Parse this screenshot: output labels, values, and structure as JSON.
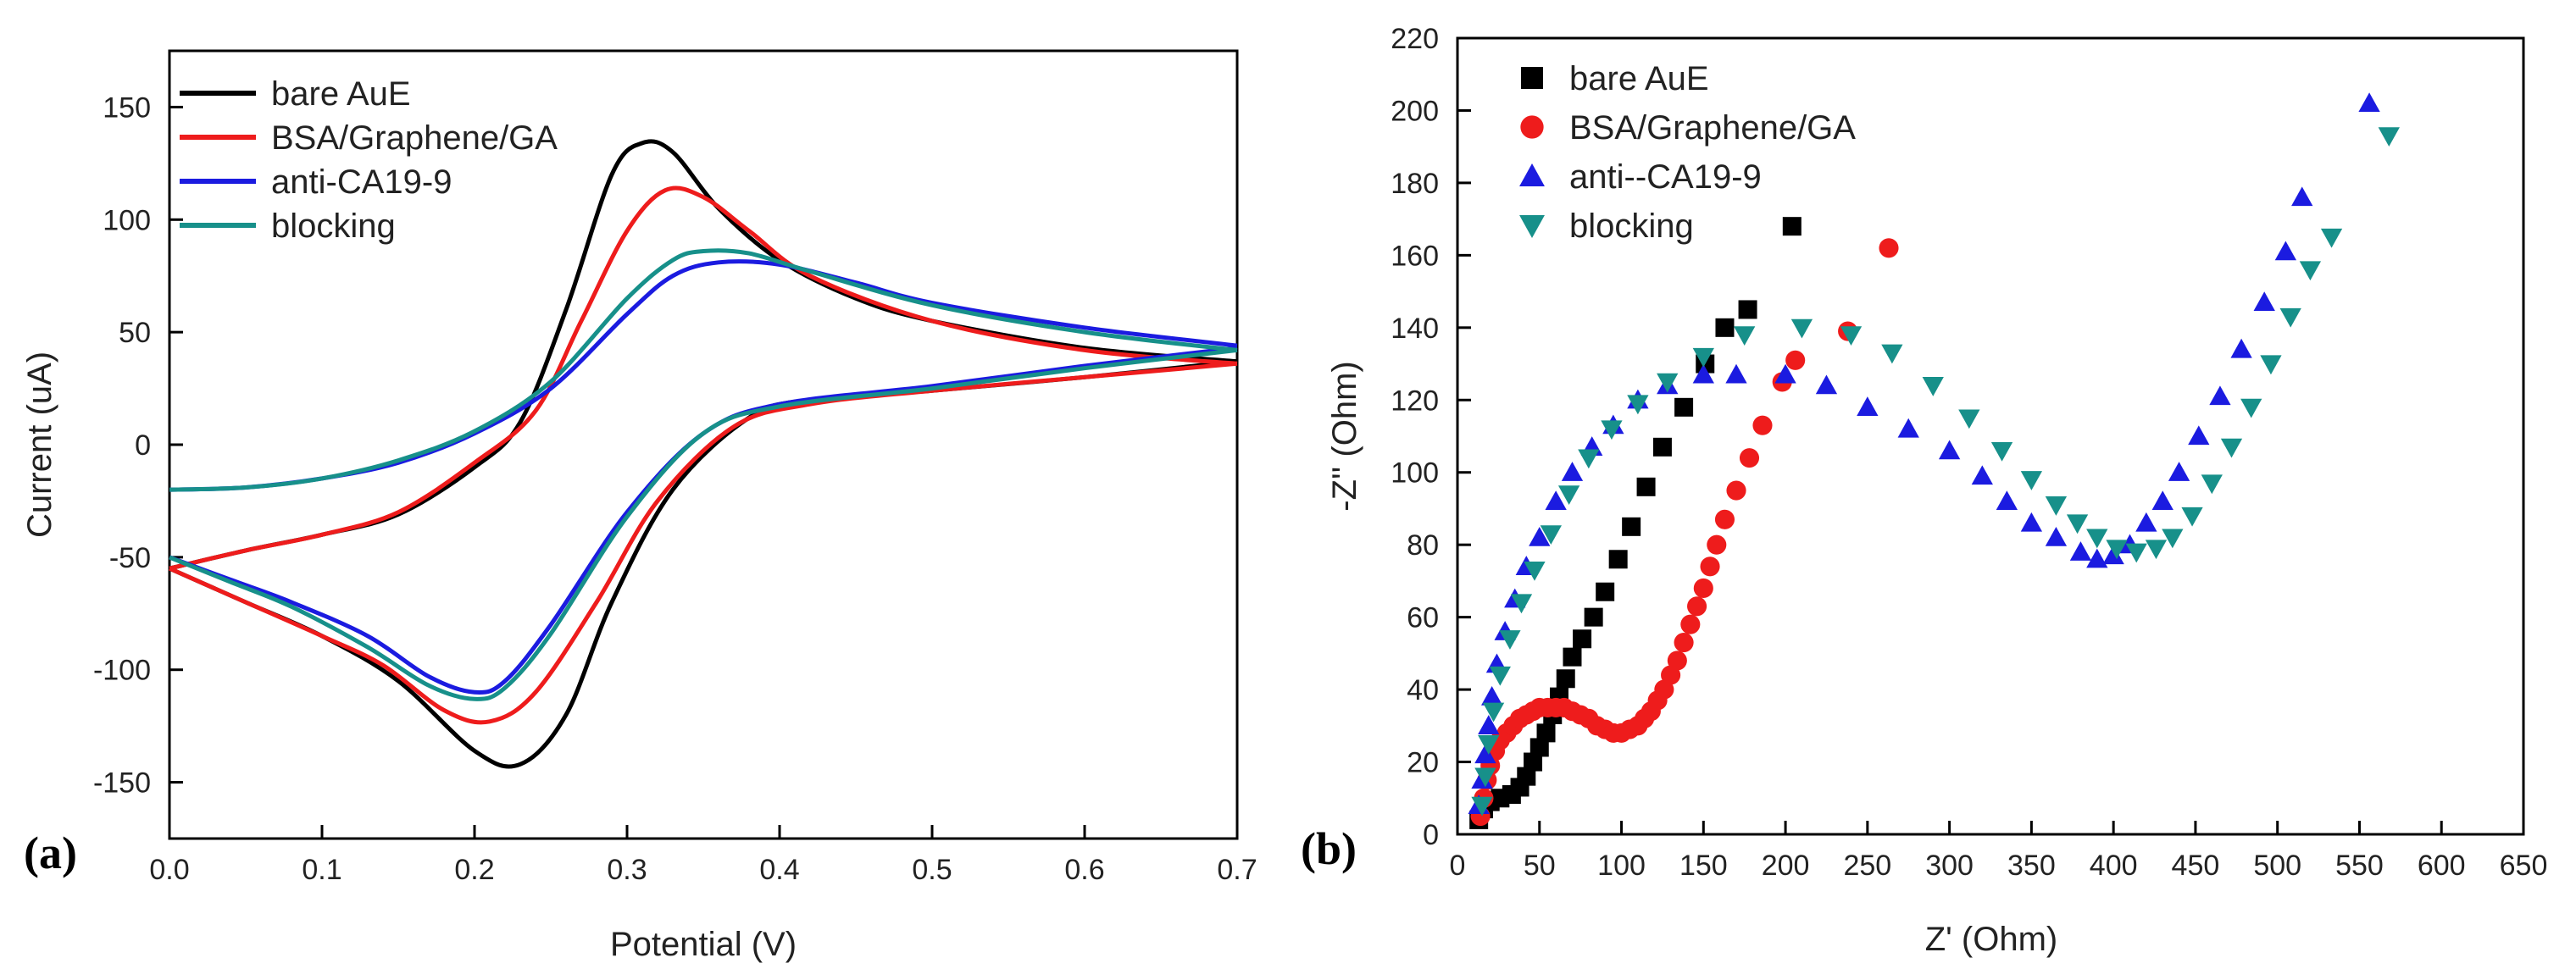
{
  "chart_data": [
    {
      "panel_label": "(a)",
      "type": "line",
      "xlabel": "Potential (V)",
      "ylabel": "Current (uA)",
      "xlim": [
        0.0,
        0.7
      ],
      "ylim": [
        -175,
        175
      ],
      "x_ticks": [
        "0.0",
        "0.1",
        "0.2",
        "0.3",
        "0.4",
        "0.5",
        "0.6",
        "0.7"
      ],
      "y_ticks": [
        "-150",
        "-100",
        "-50",
        "0",
        "50",
        "100",
        "150"
      ],
      "legend_position": "top-left",
      "series": [
        {
          "name": "bare AuE",
          "color": "#000000",
          "anodic": [
            [
              0.0,
              -55
            ],
            [
              0.05,
              -47
            ],
            [
              0.1,
              -40
            ],
            [
              0.15,
              -31
            ],
            [
              0.2,
              -10
            ],
            [
              0.23,
              10
            ],
            [
              0.26,
              60
            ],
            [
              0.29,
              120
            ],
            [
              0.31,
              134
            ],
            [
              0.33,
              130
            ],
            [
              0.36,
              105
            ],
            [
              0.4,
              82
            ],
            [
              0.45,
              65
            ],
            [
              0.5,
              55
            ],
            [
              0.6,
              43
            ],
            [
              0.7,
              37
            ]
          ],
          "cathodic": [
            [
              0.7,
              37
            ],
            [
              0.6,
              30
            ],
            [
              0.5,
              24
            ],
            [
              0.42,
              20
            ],
            [
              0.38,
              12
            ],
            [
              0.33,
              -20
            ],
            [
              0.29,
              -70
            ],
            [
              0.26,
              -120
            ],
            [
              0.23,
              -142
            ],
            [
              0.2,
              -136
            ],
            [
              0.15,
              -105
            ],
            [
              0.1,
              -85
            ],
            [
              0.05,
              -70
            ],
            [
              0.0,
              -55
            ]
          ]
        },
        {
          "name": "BSA/Graphene/GA",
          "color": "#ee1c1c",
          "anodic": [
            [
              0.0,
              -55
            ],
            [
              0.05,
              -47
            ],
            [
              0.1,
              -40
            ],
            [
              0.15,
              -30
            ],
            [
              0.2,
              -8
            ],
            [
              0.24,
              15
            ],
            [
              0.27,
              55
            ],
            [
              0.3,
              95
            ],
            [
              0.325,
              113
            ],
            [
              0.35,
              110
            ],
            [
              0.38,
              95
            ],
            [
              0.42,
              75
            ],
            [
              0.5,
              55
            ],
            [
              0.6,
              42
            ],
            [
              0.7,
              36
            ]
          ],
          "cathodic": [
            [
              0.7,
              36
            ],
            [
              0.6,
              30
            ],
            [
              0.5,
              24
            ],
            [
              0.42,
              18
            ],
            [
              0.37,
              8
            ],
            [
              0.32,
              -25
            ],
            [
              0.28,
              -70
            ],
            [
              0.24,
              -110
            ],
            [
              0.21,
              -123
            ],
            [
              0.18,
              -118
            ],
            [
              0.14,
              -98
            ],
            [
              0.1,
              -85
            ],
            [
              0.05,
              -70
            ],
            [
              0.0,
              -55
            ]
          ]
        },
        {
          "name": "anti-CA19-9",
          "color": "#1b1be0",
          "anodic": [
            [
              0.0,
              -20
            ],
            [
              0.05,
              -19
            ],
            [
              0.1,
              -15
            ],
            [
              0.15,
              -8
            ],
            [
              0.2,
              5
            ],
            [
              0.25,
              25
            ],
            [
              0.3,
              58
            ],
            [
              0.33,
              75
            ],
            [
              0.36,
              81
            ],
            [
              0.4,
              80
            ],
            [
              0.45,
              72
            ],
            [
              0.5,
              63
            ],
            [
              0.6,
              52
            ],
            [
              0.7,
              44
            ]
          ],
          "cathodic": [
            [
              0.7,
              43
            ],
            [
              0.6,
              35
            ],
            [
              0.5,
              26
            ],
            [
              0.4,
              18
            ],
            [
              0.35,
              5
            ],
            [
              0.3,
              -30
            ],
            [
              0.25,
              -80
            ],
            [
              0.22,
              -105
            ],
            [
              0.2,
              -110
            ],
            [
              0.17,
              -103
            ],
            [
              0.13,
              -85
            ],
            [
              0.08,
              -70
            ],
            [
              0.04,
              -60
            ],
            [
              0.0,
              -50
            ]
          ]
        },
        {
          "name": "blocking",
          "color": "#17908a",
          "anodic": [
            [
              0.0,
              -20
            ],
            [
              0.05,
              -19
            ],
            [
              0.1,
              -15
            ],
            [
              0.15,
              -7
            ],
            [
              0.2,
              6
            ],
            [
              0.25,
              28
            ],
            [
              0.3,
              65
            ],
            [
              0.33,
              82
            ],
            [
              0.35,
              86
            ],
            [
              0.38,
              85
            ],
            [
              0.42,
              77
            ],
            [
              0.5,
              62
            ],
            [
              0.6,
              50
            ],
            [
              0.7,
              42
            ]
          ],
          "cathodic": [
            [
              0.7,
              42
            ],
            [
              0.6,
              34
            ],
            [
              0.5,
              25
            ],
            [
              0.4,
              17
            ],
            [
              0.35,
              5
            ],
            [
              0.3,
              -32
            ],
            [
              0.25,
              -84
            ],
            [
              0.22,
              -108
            ],
            [
              0.2,
              -113
            ],
            [
              0.17,
              -107
            ],
            [
              0.13,
              -90
            ],
            [
              0.08,
              -72
            ],
            [
              0.04,
              -61
            ],
            [
              0.0,
              -50
            ]
          ]
        }
      ]
    },
    {
      "panel_label": "(b)",
      "type": "scatter",
      "xlabel": "Z' (Ohm)",
      "ylabel": "-Z'' (Ohm)",
      "xlim": [
        0,
        650
      ],
      "ylim": [
        0,
        220
      ],
      "x_ticks": [
        "0",
        "50",
        "100",
        "150",
        "200",
        "250",
        "300",
        "350",
        "400",
        "450",
        "500",
        "550",
        "600",
        "650"
      ],
      "y_ticks": [
        "0",
        "20",
        "40",
        "60",
        "80",
        "100",
        "120",
        "140",
        "160",
        "180",
        "200",
        "220"
      ],
      "legend_position": "top-left",
      "series": [
        {
          "name": "bare AuE",
          "color": "#000000",
          "marker": "square",
          "points": [
            [
              13,
              4
            ],
            [
              16,
              7
            ],
            [
              20,
              9
            ],
            [
              26,
              10
            ],
            [
              33,
              11
            ],
            [
              38,
              13
            ],
            [
              42,
              16
            ],
            [
              46,
              20
            ],
            [
              50,
              24
            ],
            [
              54,
              28
            ],
            [
              58,
              33
            ],
            [
              62,
              38
            ],
            [
              66,
              43
            ],
            [
              70,
              49
            ],
            [
              76,
              54
            ],
            [
              83,
              60
            ],
            [
              90,
              67
            ],
            [
              98,
              76
            ],
            [
              106,
              85
            ],
            [
              115,
              96
            ],
            [
              125,
              107
            ],
            [
              138,
              118
            ],
            [
              151,
              130
            ],
            [
              163,
              140
            ],
            [
              177,
              145
            ],
            [
              204,
              168
            ]
          ]
        },
        {
          "name": "BSA/Graphene/GA",
          "color": "#ee1c1c",
          "marker": "circle",
          "points": [
            [
              14,
              5
            ],
            [
              16,
              10
            ],
            [
              18,
              15
            ],
            [
              20,
              19
            ],
            [
              23,
              23
            ],
            [
              26,
              26
            ],
            [
              30,
              28
            ],
            [
              34,
              30
            ],
            [
              38,
              32
            ],
            [
              42,
              33
            ],
            [
              46,
              34
            ],
            [
              50,
              35
            ],
            [
              55,
              35
            ],
            [
              60,
              35
            ],
            [
              65,
              35
            ],
            [
              70,
              34
            ],
            [
              75,
              33
            ],
            [
              80,
              32
            ],
            [
              85,
              30
            ],
            [
              90,
              29
            ],
            [
              95,
              28
            ],
            [
              100,
              28
            ],
            [
              105,
              29
            ],
            [
              110,
              30
            ],
            [
              114,
              32
            ],
            [
              118,
              34
            ],
            [
              122,
              37
            ],
            [
              126,
              40
            ],
            [
              130,
              44
            ],
            [
              134,
              48
            ],
            [
              138,
              53
            ],
            [
              142,
              58
            ],
            [
              146,
              63
            ],
            [
              150,
              68
            ],
            [
              154,
              74
            ],
            [
              158,
              80
            ],
            [
              163,
              87
            ],
            [
              170,
              95
            ],
            [
              178,
              104
            ],
            [
              186,
              113
            ],
            [
              198,
              125
            ],
            [
              206,
              131
            ],
            [
              238,
              139
            ],
            [
              263,
              162
            ]
          ]
        },
        {
          "name": "anti--CA19-9",
          "color": "#1b1be0",
          "marker": "triangle-up",
          "points": [
            [
              13,
              8
            ],
            [
              15,
              15
            ],
            [
              17,
              22
            ],
            [
              19,
              30
            ],
            [
              21,
              38
            ],
            [
              24,
              47
            ],
            [
              29,
              56
            ],
            [
              35,
              65
            ],
            [
              42,
              74
            ],
            [
              50,
              82
            ],
            [
              60,
              92
            ],
            [
              70,
              100
            ],
            [
              82,
              107
            ],
            [
              95,
              113
            ],
            [
              110,
              120
            ],
            [
              128,
              124
            ],
            [
              150,
              127
            ],
            [
              170,
              127
            ],
            [
              200,
              127
            ],
            [
              225,
              124
            ],
            [
              250,
              118
            ],
            [
              275,
              112
            ],
            [
              300,
              106
            ],
            [
              320,
              99
            ],
            [
              335,
              92
            ],
            [
              350,
              86
            ],
            [
              365,
              82
            ],
            [
              380,
              78
            ],
            [
              390,
              76
            ],
            [
              400,
              77
            ],
            [
              410,
              80
            ],
            [
              420,
              86
            ],
            [
              430,
              92
            ],
            [
              440,
              100
            ],
            [
              452,
              110
            ],
            [
              465,
              121
            ],
            [
              478,
              134
            ],
            [
              492,
              147
            ],
            [
              505,
              161
            ],
            [
              515,
              176
            ],
            [
              556,
              202
            ]
          ]
        },
        {
          "name": "blocking",
          "color": "#17908a",
          "marker": "triangle-down",
          "points": [
            [
              15,
              8
            ],
            [
              17,
              16
            ],
            [
              19,
              25
            ],
            [
              22,
              34
            ],
            [
              26,
              44
            ],
            [
              32,
              54
            ],
            [
              39,
              64
            ],
            [
              47,
              73
            ],
            [
              57,
              83
            ],
            [
              68,
              94
            ],
            [
              80,
              104
            ],
            [
              94,
              112
            ],
            [
              110,
              119
            ],
            [
              128,
              125
            ],
            [
              150,
              132
            ],
            [
              175,
              138
            ],
            [
              210,
              140
            ],
            [
              240,
              138
            ],
            [
              265,
              133
            ],
            [
              290,
              124
            ],
            [
              312,
              115
            ],
            [
              332,
              106
            ],
            [
              350,
              98
            ],
            [
              365,
              91
            ],
            [
              378,
              86
            ],
            [
              390,
              82
            ],
            [
              402,
              79
            ],
            [
              414,
              78
            ],
            [
              426,
              79
            ],
            [
              436,
              82
            ],
            [
              448,
              88
            ],
            [
              460,
              97
            ],
            [
              472,
              107
            ],
            [
              484,
              118
            ],
            [
              496,
              130
            ],
            [
              508,
              143
            ],
            [
              520,
              156
            ],
            [
              533,
              165
            ],
            [
              568,
              193
            ]
          ]
        }
      ]
    }
  ]
}
